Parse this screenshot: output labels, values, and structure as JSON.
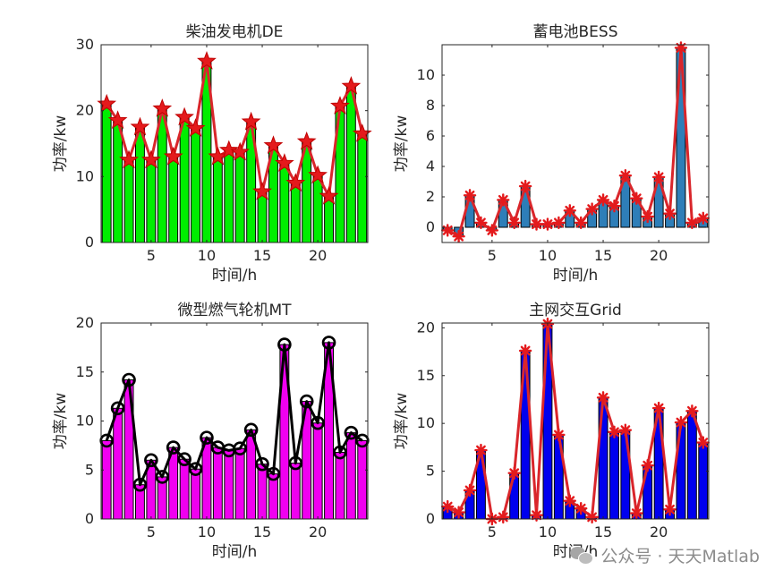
{
  "watermark": {
    "text": "公众号 · 天天Matlab",
    "icon": "wechat-icon"
  },
  "chart_data": [
    {
      "id": "de",
      "type": "bar",
      "title": "柴油发电机DE",
      "xlabel": "时间/h",
      "ylabel": "功率/kw",
      "xlim": [
        0.5,
        24.5
      ],
      "ylim": [
        0,
        30
      ],
      "xticks": [
        5,
        10,
        15,
        20
      ],
      "yticks": [
        0,
        10,
        20,
        30
      ],
      "x": [
        1,
        2,
        3,
        4,
        5,
        6,
        7,
        8,
        9,
        10,
        11,
        12,
        13,
        14,
        15,
        16,
        17,
        18,
        19,
        20,
        21,
        22,
        23,
        24
      ],
      "values": [
        21,
        18.5,
        12.5,
        17.5,
        12.5,
        20.3,
        13,
        19,
        17.3,
        27.5,
        13,
        14,
        13.7,
        18.3,
        7.7,
        14.7,
        12,
        9,
        15.3,
        10.2,
        7,
        20.7,
        23.7,
        16.5
      ],
      "bar_color": "#00ee00",
      "line_color": "#d9262b",
      "marker": "star",
      "marker_color": "#e41a1c"
    },
    {
      "id": "bess",
      "type": "bar",
      "title": "蓄电池BESS",
      "xlabel": "时间/h",
      "ylabel": "功率/kw",
      "xlim": [
        0.5,
        24.5
      ],
      "ylim": [
        -1,
        12
      ],
      "xticks": [
        5,
        10,
        15,
        20
      ],
      "yticks": [
        0,
        2,
        4,
        6,
        8,
        10
      ],
      "x": [
        1,
        2,
        3,
        4,
        5,
        6,
        7,
        8,
        9,
        10,
        11,
        12,
        13,
        14,
        15,
        16,
        17,
        18,
        19,
        20,
        21,
        22,
        23,
        24
      ],
      "values": [
        -0.2,
        -0.6,
        2.1,
        0.3,
        -0.2,
        1.8,
        0.3,
        2.7,
        0.2,
        0.2,
        0.3,
        1.1,
        0.3,
        1.2,
        1.8,
        1.4,
        3.4,
        1.9,
        0.7,
        3.3,
        0.9,
        11.8,
        0.3,
        0.6
      ],
      "bar_color": "#2e7eb8",
      "line_color": "#d9262b",
      "marker": "asterisk",
      "marker_color": "#e41a1c"
    },
    {
      "id": "mt",
      "type": "bar",
      "title": "微型燃气轮机MT",
      "xlabel": "时间/h",
      "ylabel": "功率/kw",
      "xlim": [
        0.5,
        24.5
      ],
      "ylim": [
        0,
        20
      ],
      "xticks": [
        5,
        10,
        15,
        20
      ],
      "yticks": [
        0,
        5,
        10,
        15,
        20
      ],
      "x": [
        1,
        2,
        3,
        4,
        5,
        6,
        7,
        8,
        9,
        10,
        11,
        12,
        13,
        14,
        15,
        16,
        17,
        18,
        19,
        20,
        21,
        22,
        23,
        24
      ],
      "values": [
        8,
        11.3,
        14.2,
        3.5,
        6,
        4.3,
        7.3,
        6.1,
        5.1,
        8.3,
        7.3,
        7,
        7.2,
        9.1,
        5.6,
        4.6,
        17.8,
        5.7,
        12,
        9.8,
        18,
        6.8,
        8.8,
        8
      ],
      "bar_color": "#f000f0",
      "line_color": "#000000",
      "marker": "circle",
      "marker_color": "#000000"
    },
    {
      "id": "grid",
      "type": "bar",
      "title": "主网交互Grid",
      "xlabel": "时间/h",
      "ylabel": "功率/kw",
      "xlim": [
        0.5,
        24.5
      ],
      "ylim": [
        0,
        20.5
      ],
      "xticks": [
        5,
        10,
        15,
        20
      ],
      "yticks": [
        0,
        5,
        10,
        15,
        20
      ],
      "x": [
        1,
        2,
        3,
        4,
        5,
        6,
        7,
        8,
        9,
        10,
        11,
        12,
        13,
        14,
        15,
        16,
        17,
        18,
        19,
        20,
        21,
        22,
        23,
        24
      ],
      "values": [
        1.3,
        0.7,
        3,
        7.2,
        0,
        0.2,
        4.8,
        17.6,
        0.4,
        20.4,
        8.8,
        1.9,
        1.1,
        0.2,
        12.7,
        9.1,
        9.3,
        0.6,
        5.6,
        11.6,
        1,
        10.1,
        11.3,
        8
      ],
      "bar_color": "#0000ee",
      "line_color": "#d9262b",
      "marker": "asterisk",
      "marker_color": "#e41a1c"
    }
  ]
}
